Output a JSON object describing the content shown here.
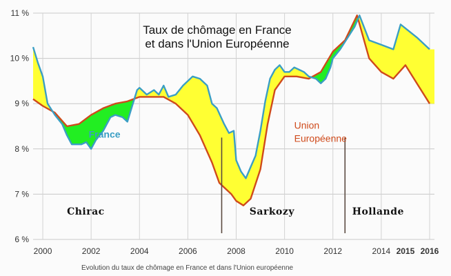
{
  "chart_data": {
    "type": "line",
    "title_line1": "Taux de chômage en France",
    "title_line2": "et dans l'Union Européenne",
    "caption": "Evolution du taux de chômage en France et dans l'Union européenne",
    "xlim": [
      1999.6,
      2016.2
    ],
    "ylim": [
      6,
      11
    ],
    "xticks": [
      {
        "v": 2000,
        "label": "2000"
      },
      {
        "v": 2002,
        "label": "2002"
      },
      {
        "v": 2004,
        "label": "2004"
      },
      {
        "v": 2006,
        "label": "2006"
      },
      {
        "v": 2008,
        "label": "2008"
      },
      {
        "v": 2010,
        "label": "2010"
      },
      {
        "v": 2012,
        "label": "2012"
      },
      {
        "v": 2014,
        "label": "2014"
      },
      {
        "v": 2015,
        "label": "2015"
      },
      {
        "v": 2016,
        "label": "2016"
      }
    ],
    "yticks": [
      {
        "v": 6,
        "label": "6 %"
      },
      {
        "v": 7,
        "label": "7 %"
      },
      {
        "v": 8,
        "label": "8 %"
      },
      {
        "v": 9,
        "label": "9 %"
      },
      {
        "v": 10,
        "label": "10 %"
      },
      {
        "v": 11,
        "label": "11 %"
      }
    ],
    "series": [
      {
        "name": "France",
        "color": "#3a9ec4",
        "label_pos": [
          2001.9,
          8.25
        ],
        "x": [
          1999.6,
          1999.8,
          2000.0,
          2000.2,
          2000.5,
          2000.8,
          2001.0,
          2001.2,
          2001.4,
          2001.6,
          2001.8,
          2002.0,
          2002.2,
          2002.5,
          2002.8,
          2003.0,
          2003.3,
          2003.5,
          2003.7,
          2003.9,
          2004.0,
          2004.3,
          2004.6,
          2004.8,
          2005.0,
          2005.2,
          2005.5,
          2005.8,
          2006.0,
          2006.2,
          2006.5,
          2006.8,
          2007.0,
          2007.2,
          2007.5,
          2007.7,
          2007.9,
          2008.0,
          2008.2,
          2008.4,
          2008.6,
          2008.8,
          2009.0,
          2009.2,
          2009.4,
          2009.6,
          2009.8,
          2010.0,
          2010.2,
          2010.4,
          2010.6,
          2010.8,
          2011.0,
          2011.3,
          2011.5,
          2011.7,
          2011.9,
          2012.0,
          2012.3,
          2012.6,
          2012.9,
          2013.1,
          2013.5,
          2014.0,
          2014.5,
          2014.8,
          2015.5,
          2016.0
        ],
        "y": [
          10.25,
          9.9,
          9.6,
          9.0,
          8.75,
          8.55,
          8.3,
          8.1,
          8.1,
          8.1,
          8.15,
          8.0,
          8.2,
          8.4,
          8.7,
          8.75,
          8.7,
          8.6,
          8.95,
          9.3,
          9.35,
          9.2,
          9.3,
          9.2,
          9.4,
          9.15,
          9.2,
          9.4,
          9.5,
          9.6,
          9.55,
          9.4,
          9.0,
          8.9,
          8.55,
          8.35,
          8.4,
          7.75,
          7.5,
          7.35,
          7.6,
          7.85,
          8.4,
          9.05,
          9.55,
          9.75,
          9.85,
          9.7,
          9.7,
          9.8,
          9.75,
          9.7,
          9.6,
          9.55,
          9.45,
          9.55,
          9.8,
          10.0,
          10.2,
          10.45,
          10.7,
          10.95,
          10.4,
          10.3,
          10.2,
          10.75,
          10.45,
          10.2
        ]
      },
      {
        "name": "Union Européenne",
        "name_line1": "Union",
        "name_line2": "Européenne",
        "color": "#cf4a1b",
        "label_pos": [
          2010.4,
          8.45
        ],
        "x": [
          1999.6,
          2000.0,
          2000.5,
          2001.0,
          2001.5,
          2002.0,
          2002.5,
          2003.0,
          2003.5,
          2004.0,
          2004.5,
          2005.0,
          2005.5,
          2006.0,
          2006.5,
          2007.0,
          2007.3,
          2007.5,
          2007.8,
          2008.0,
          2008.3,
          2008.6,
          2009.0,
          2009.3,
          2009.6,
          2010.0,
          2010.5,
          2011.0,
          2011.5,
          2012.0,
          2012.5,
          2013.0,
          2013.5,
          2014.0,
          2014.5,
          2015.0,
          2016.0
        ],
        "y": [
          9.1,
          8.95,
          8.8,
          8.5,
          8.55,
          8.75,
          8.9,
          9.0,
          9.05,
          9.15,
          9.15,
          9.15,
          9.0,
          8.75,
          8.3,
          7.7,
          7.25,
          7.15,
          7.0,
          6.85,
          6.75,
          6.9,
          7.55,
          8.55,
          9.3,
          9.6,
          9.6,
          9.55,
          9.7,
          10.15,
          10.4,
          10.95,
          10.0,
          9.7,
          9.55,
          9.85,
          9.0
        ]
      }
    ],
    "fill_colors": {
      "france_higher": "#ffff33",
      "france_lower": "#22ee22"
    },
    "eras": [
      {
        "name": "Chirac",
        "label_x": 2001.0
      },
      {
        "name": "Sarkozy",
        "label_x": 2008.55
      },
      {
        "name": "Hollande",
        "label_x": 2012.8
      }
    ],
    "era_dividers": [
      2007.4,
      2012.5
    ],
    "grid": true,
    "legend": "inline"
  }
}
